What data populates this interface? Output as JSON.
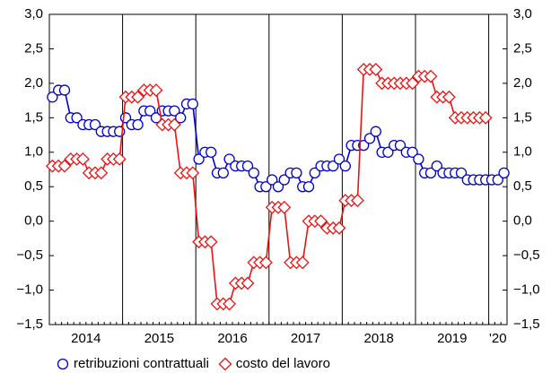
{
  "chart_data": {
    "type": "line",
    "categories": [
      null,
      null,
      null,
      null,
      null,
      null,
      null,
      null,
      null,
      null,
      null,
      null,
      null,
      null,
      null,
      null,
      null,
      null,
      null,
      null,
      null,
      null,
      null,
      null,
      null,
      null,
      null,
      null,
      null,
      null,
      null,
      null,
      null,
      null,
      null,
      null,
      null,
      null,
      null,
      null,
      null,
      null,
      null,
      null,
      null,
      null,
      null,
      null,
      null,
      null,
      null,
      null,
      null,
      null,
      null,
      null,
      null,
      null,
      null,
      null,
      null,
      null,
      null,
      null,
      null,
      null,
      null,
      null,
      null,
      null,
      null,
      null,
      null,
      null,
      null
    ],
    "year_labels": [
      "2014",
      "2015",
      "2016",
      "2017",
      "2018",
      "2019",
      "'20"
    ],
    "series": [
      {
        "name": "retribuzioni contrattuali",
        "color": "#0000cc",
        "marker": "circle",
        "values": [
          1.8,
          1.9,
          1.9,
          1.5,
          1.5,
          1.4,
          1.4,
          1.4,
          1.3,
          1.3,
          1.3,
          1.3,
          1.5,
          1.4,
          1.4,
          1.6,
          1.6,
          1.5,
          1.6,
          1.6,
          1.6,
          1.5,
          1.7,
          1.7,
          0.9,
          1.0,
          1.0,
          0.7,
          0.7,
          0.9,
          0.8,
          0.8,
          0.8,
          0.7,
          0.5,
          0.5,
          0.6,
          0.5,
          0.6,
          0.7,
          0.7,
          0.5,
          0.5,
          0.7,
          0.8,
          0.8,
          0.8,
          0.9,
          0.8,
          1.1,
          1.1,
          1.1,
          1.2,
          1.3,
          1.0,
          1.0,
          1.1,
          1.1,
          1.0,
          1.0,
          0.9,
          0.7,
          0.7,
          0.8,
          0.7,
          0.7,
          0.7,
          0.7,
          0.6,
          0.6,
          0.6,
          0.6,
          0.6,
          0.6,
          0.7
        ]
      },
      {
        "name": "costo del lavoro",
        "color": "#ee1111",
        "marker": "diamond",
        "values": [
          0.8,
          0.8,
          0.8,
          0.9,
          0.9,
          0.9,
          0.7,
          0.7,
          0.7,
          0.9,
          0.9,
          0.9,
          1.8,
          1.8,
          1.8,
          1.9,
          1.9,
          1.9,
          1.4,
          1.4,
          1.4,
          0.7,
          0.7,
          0.7,
          -0.3,
          -0.3,
          -0.3,
          -1.2,
          -1.2,
          -1.2,
          -0.9,
          -0.9,
          -0.9,
          -0.6,
          -0.6,
          -0.6,
          0.2,
          0.2,
          0.2,
          -0.6,
          -0.6,
          -0.6,
          0.0,
          0.0,
          0.0,
          -0.1,
          -0.1,
          -0.1,
          0.3,
          0.3,
          0.3,
          2.2,
          2.2,
          2.2,
          2.0,
          2.0,
          2.0,
          2.0,
          2.0,
          2.0,
          2.1,
          2.1,
          2.1,
          1.8,
          1.8,
          1.8,
          1.5,
          1.5,
          1.5,
          1.5,
          1.5,
          1.5,
          null,
          null,
          null
        ]
      }
    ],
    "ylim": [
      -1.5,
      3.0
    ],
    "yticks": [
      {
        "value": -1.5,
        "label": "−1,5"
      },
      {
        "value": -1.0,
        "label": "−1,0"
      },
      {
        "value": -0.5,
        "label": "−0,5"
      },
      {
        "value": 0.0,
        "label": "0,0"
      },
      {
        "value": 0.5,
        "label": "0,5"
      },
      {
        "value": 1.0,
        "label": "1,0"
      },
      {
        "value": 1.5,
        "label": "1,5"
      },
      {
        "value": 2.0,
        "label": "2,0"
      },
      {
        "value": 2.5,
        "label": "2,5"
      },
      {
        "value": 3.0,
        "label": "3,0"
      }
    ],
    "y2lim": [
      -1.5,
      3.0
    ],
    "y2ticks": [
      {
        "value": -1.5,
        "label": "−1,5"
      },
      {
        "value": -1.0,
        "label": "−1,0"
      },
      {
        "value": -0.5,
        "label": "−0,5"
      },
      {
        "value": 0.0,
        "label": "0,0"
      },
      {
        "value": 0.5,
        "label": "0,5"
      },
      {
        "value": 1.0,
        "label": "1,0"
      },
      {
        "value": 1.5,
        "label": "1,5"
      },
      {
        "value": 2.0,
        "label": "2,0"
      },
      {
        "value": 2.5,
        "label": "2,5"
      },
      {
        "value": 3.0,
        "label": "3,0"
      }
    ],
    "legend": "bottom"
  }
}
